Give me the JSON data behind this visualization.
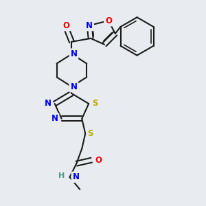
{
  "bg_color": "#e8ecf0",
  "bond_color": "#1a1a1a",
  "atom_colors": {
    "N": "#0000ee",
    "O": "#ee0000",
    "S": "#bbaa00",
    "H": "#4a9a8a",
    "C": "#1a1a1a"
  },
  "font_size": 8.5
}
